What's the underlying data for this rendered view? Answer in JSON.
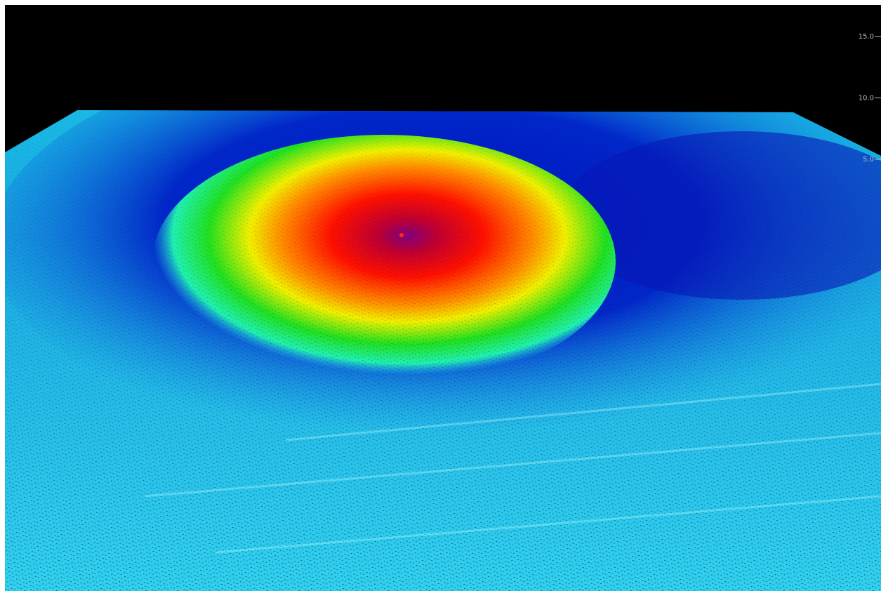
{
  "scale": {
    "ticks": [
      {
        "value": 15,
        "label": "15.0"
      },
      {
        "value": 10,
        "label": "10.0"
      },
      {
        "value": 5,
        "label": "5.0"
      }
    ]
  }
}
